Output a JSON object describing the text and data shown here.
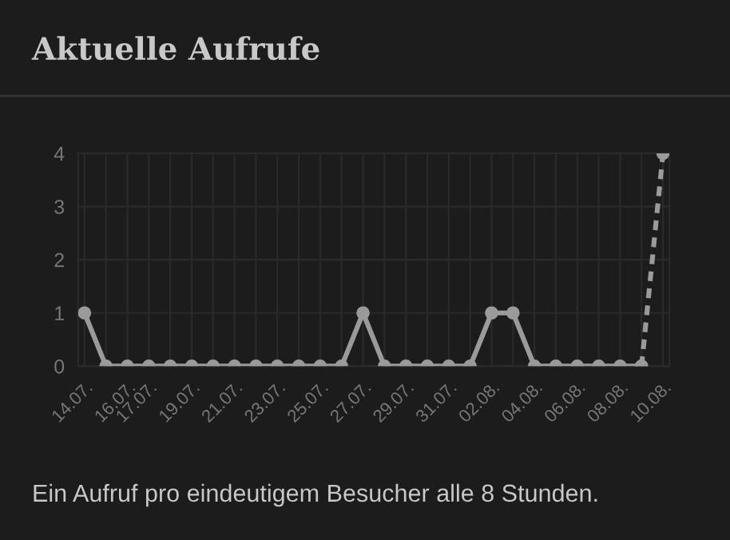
{
  "chart_data": {
    "type": "line",
    "title": "Aktuelle Aufrufe",
    "categories": [
      "14.07.",
      null,
      "16.07.",
      "17.07.",
      null,
      "19.07.",
      null,
      "21.07.",
      null,
      "23.07.",
      null,
      "25.07.",
      null,
      "27.07.",
      null,
      "29.07.",
      null,
      "31.07.",
      null,
      "02.08.",
      null,
      "04.08.",
      null,
      "06.08.",
      null,
      "08.08.",
      null,
      "10.08."
    ],
    "series": [
      {
        "color": "#9a9a9a",
        "line_style": "solid",
        "values": [
          1,
          0,
          0,
          0,
          0,
          0,
          0,
          0,
          0,
          0,
          0,
          0,
          0,
          1,
          0,
          0,
          0,
          0,
          0,
          1,
          1,
          0,
          0,
          0,
          0,
          0,
          0,
          null
        ]
      },
      {
        "color": "#9a9a9a",
        "line_style": "dashed",
        "marker": "circle",
        "values": [
          null,
          null,
          null,
          null,
          null,
          null,
          null,
          null,
          null,
          null,
          null,
          null,
          null,
          null,
          null,
          null,
          null,
          null,
          null,
          null,
          null,
          null,
          null,
          null,
          null,
          null,
          0,
          4
        ]
      }
    ],
    "ylim": [
      0,
      4
    ],
    "yticks": [
      0,
      1,
      2,
      3,
      4
    ],
    "grid": true,
    "marker": "circle",
    "annotations": [
      "Ein Aufruf pro eindeutigem Besucher alle 8 Stunden."
    ]
  }
}
